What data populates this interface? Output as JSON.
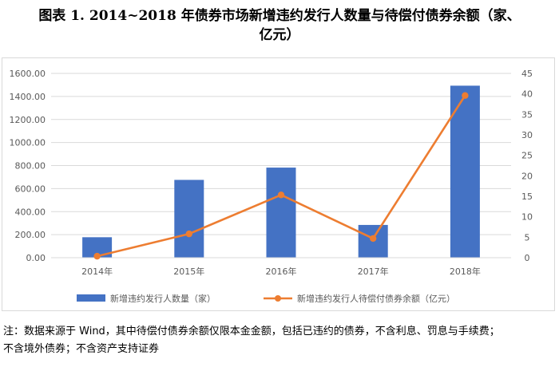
{
  "title": {
    "line1": "图表 1. 2014~2018 年债券市场新增违约发行人数量与待偿付债券余额（家、",
    "line2": "亿元）"
  },
  "note": {
    "line1": "注：数据来源于 Wind，其中待偿付债券余额仅限本金金额，包括已违约的债券，不含利息、罚息与手续费；",
    "line2": "不含境外债券；不含资产支持证券"
  },
  "colors": {
    "bar": "#4472c4",
    "line": "#ed7d31",
    "grid": "#d9d9d9",
    "axis_text": "#595959"
  },
  "chart_data": {
    "type": "bar",
    "categories": [
      "2014年",
      "2015年",
      "2016年",
      "2017年",
      "2018年"
    ],
    "series": [
      {
        "name": "新增违约发行人数量（家）",
        "type": "bar",
        "axis": "right",
        "values": [
          5,
          19,
          22,
          8,
          42
        ]
      },
      {
        "name": "新增违约发行人待偿付债券余额（亿元）",
        "type": "line",
        "axis": "left",
        "values": [
          13,
          207,
          545,
          167,
          1408
        ]
      }
    ],
    "y_left": {
      "ticks": [
        "0.00",
        "200.00",
        "400.00",
        "600.00",
        "800.00",
        "1000.00",
        "1200.00",
        "1400.00",
        "1600.00"
      ],
      "ylim": [
        0,
        1600
      ]
    },
    "y_right": {
      "ticks": [
        "0",
        "5",
        "10",
        "15",
        "20",
        "25",
        "30",
        "35",
        "40",
        "45"
      ],
      "ylim": [
        0,
        45
      ]
    },
    "grid": true,
    "legend_position": "bottom"
  }
}
